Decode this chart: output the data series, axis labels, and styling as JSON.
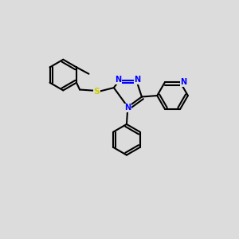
{
  "bg_color": "#dcdcdc",
  "bond_color": "#000000",
  "n_color": "#0000ff",
  "s_color": "#cccc00",
  "lw": 1.5,
  "fig_size": [
    3.0,
    3.0
  ],
  "dpi": 100,
  "xlim": [
    0,
    10
  ],
  "ylim": [
    0,
    10
  ]
}
